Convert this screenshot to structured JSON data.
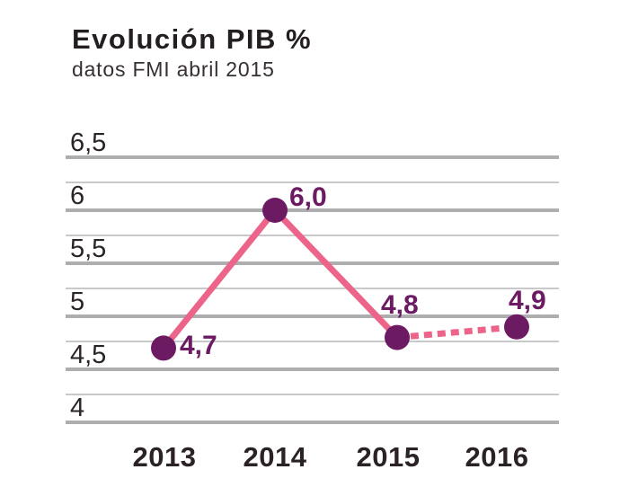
{
  "header": {
    "title": "Evolución PIB %",
    "subtitle": "datos FMI abril 2015"
  },
  "chart_data": {
    "type": "line",
    "title": "Evolución PIB %",
    "subtitle": "datos FMI abril 2015",
    "categories": [
      "2013",
      "2014",
      "2015",
      "2016"
    ],
    "series": [
      {
        "name": "PIB %",
        "values": [
          4.7,
          6.0,
          4.8,
          4.9
        ],
        "point_labels": [
          "4,7",
          "6,0",
          "4,8",
          "4,9"
        ],
        "solid_segment_categories": [
          "2013",
          "2014",
          "2015"
        ],
        "dashed_segment_categories": [
          "2015",
          "2016"
        ]
      }
    ],
    "y_ticks": [
      {
        "value": 6.5,
        "label": "6,5"
      },
      {
        "value": 6.0,
        "label": "6"
      },
      {
        "value": 5.5,
        "label": "5,5"
      },
      {
        "value": 5.0,
        "label": "5"
      },
      {
        "value": 4.5,
        "label": "4,5"
      },
      {
        "value": 4.0,
        "label": "4"
      }
    ],
    "ylim": [
      3.75,
      6.75
    ],
    "xlabel": "",
    "ylabel": "",
    "grid": "horizontal",
    "legend": "none",
    "colors": {
      "line": "#ec6489",
      "point": "#6c1a62",
      "point_label": "#6c1a62",
      "grid_thick": "#aeaeb0",
      "grid_thin": "#c9c9cb",
      "title_text": "#241e1f",
      "axis_text": "#2a2223"
    }
  }
}
